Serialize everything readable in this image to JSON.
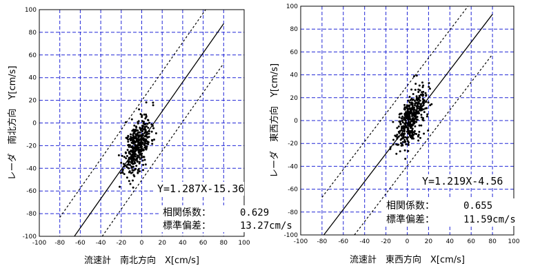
{
  "chart_data": [
    {
      "type": "scatter",
      "xlabel": "流速計　南北方向　X[cm/s]",
      "ylabel": "レーダ　南北方向　Y[cm/s]",
      "xlim": [
        -100,
        100
      ],
      "ylim": [
        -100,
        100
      ],
      "xticks": [
        -100,
        -80,
        -60,
        -40,
        -20,
        0,
        20,
        40,
        60,
        80,
        100
      ],
      "yticks": [
        -100,
        -80,
        -60,
        -40,
        -20,
        0,
        20,
        40,
        60,
        80,
        100
      ],
      "grid": true,
      "regression": {
        "slope": 1.287,
        "intercept": -15.36
      },
      "band_offset": 35,
      "equation_text": "Y=1.287X-15.36",
      "stats": [
        {
          "label": "相関係数：",
          "value": "0.629"
        },
        {
          "label": "標準偏差：",
          "value": "13.27cm/s"
        }
      ],
      "cloud": {
        "x_mean": -4,
        "x_sd": 6.5,
        "y_resid_sd": 11,
        "count": 420,
        "seed": 11
      }
    },
    {
      "type": "scatter",
      "xlabel": "流速計　東西方向　X[cm/s]",
      "ylabel": "レーダ　東西方向　Y[cm/s]",
      "xlim": [
        -100,
        100
      ],
      "ylim": [
        -100,
        100
      ],
      "xticks": [
        -100,
        -80,
        -60,
        -40,
        -20,
        0,
        20,
        40,
        60,
        80,
        100
      ],
      "yticks": [
        -100,
        -80,
        -60,
        -40,
        -20,
        0,
        20,
        40,
        60,
        80,
        100
      ],
      "grid": true,
      "regression": {
        "slope": 1.219,
        "intercept": -4.56
      },
      "band_offset": 35,
      "equation_text": "Y=1.219X-4.56",
      "stats": [
        {
          "label": "相関係数：",
          "value": "0.655"
        },
        {
          "label": "標準偏差：",
          "value": "11.59cm/s"
        }
      ],
      "cloud": {
        "x_mean": 3,
        "x_sd": 7,
        "y_resid_sd": 10,
        "count": 420,
        "seed": 29
      }
    }
  ]
}
